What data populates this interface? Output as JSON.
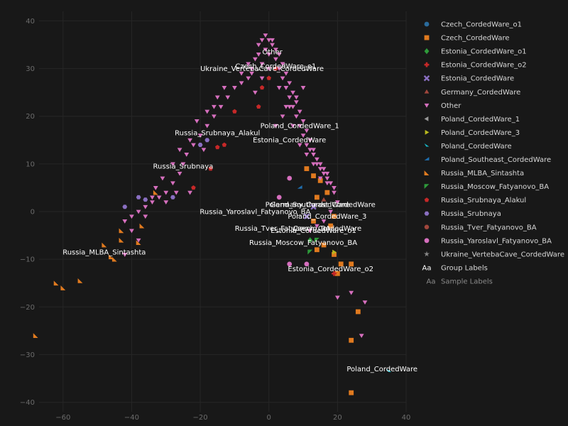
{
  "chart_data": {
    "type": "scatter",
    "xlim": [
      -67,
      40
    ],
    "ylim": [
      -42,
      42
    ],
    "x_ticks": [
      -60,
      -40,
      -20,
      0,
      20,
      40
    ],
    "y_ticks": [
      -40,
      -30,
      -20,
      -10,
      0,
      10,
      20,
      30,
      40
    ],
    "x_tick_labels": [
      "−60",
      "−40",
      "−20",
      "0",
      "20",
      "40"
    ],
    "y_tick_labels": [
      "−40",
      "−30",
      "−20",
      "−10",
      "0",
      "10",
      "20",
      "30",
      "40"
    ],
    "grid": true,
    "legend_position": "right",
    "series": [
      {
        "name": "Czech_CordedWare_o1",
        "marker": "circle",
        "color": "#2a6b9c",
        "points": []
      },
      {
        "name": "Czech_CordedWare",
        "marker": "square",
        "color": "#e07a1f",
        "points": [
          [
            11,
            9
          ],
          [
            13,
            7.5
          ],
          [
            15,
            6.5
          ],
          [
            17,
            4
          ],
          [
            14,
            3
          ],
          [
            13,
            -2
          ],
          [
            19,
            -1
          ],
          [
            18,
            -3
          ],
          [
            16,
            -7
          ],
          [
            14,
            -8
          ],
          [
            19,
            -9
          ],
          [
            21,
            -11
          ],
          [
            24,
            -11
          ],
          [
            20,
            -13
          ],
          [
            26,
            -21
          ],
          [
            24,
            -27
          ],
          [
            24,
            -38
          ]
        ]
      },
      {
        "name": "Estonia_CordedWare_o1",
        "marker": "diamond",
        "color": "#2e9b3a",
        "points": [
          [
            12,
            -6
          ]
        ]
      },
      {
        "name": "Estonia_CordedWare_o2",
        "marker": "plus",
        "color": "#c62828",
        "points": [
          [
            19,
            -13
          ]
        ]
      },
      {
        "name": "Estonia_CordedWare",
        "marker": "x",
        "color": "#8a6fc2",
        "points": [
          [
            11,
            -1
          ],
          [
            13,
            1
          ]
        ]
      },
      {
        "name": "Germany_CordedWare",
        "marker": "triangle-up",
        "color": "#a0463c",
        "points": [
          [
            16,
            2.5
          ]
        ]
      },
      {
        "name": "Other",
        "marker": "triangle-down",
        "color": "#d66fbe",
        "points": [
          [
            -3,
            35
          ],
          [
            -1,
            37
          ],
          [
            1,
            36
          ],
          [
            0,
            33
          ],
          [
            2,
            32
          ],
          [
            3,
            30
          ],
          [
            4,
            28
          ],
          [
            5,
            26
          ],
          [
            6,
            24
          ],
          [
            7,
            22
          ],
          [
            8,
            20
          ],
          [
            9,
            18
          ],
          [
            10,
            16
          ],
          [
            11,
            14
          ],
          [
            12,
            13
          ],
          [
            13,
            12
          ],
          [
            14,
            10
          ],
          [
            15,
            9
          ],
          [
            16,
            8
          ],
          [
            17,
            7
          ],
          [
            18,
            6
          ],
          [
            19,
            5
          ],
          [
            -4,
            32
          ],
          [
            -5,
            30
          ],
          [
            -6,
            28
          ],
          [
            -8,
            27
          ],
          [
            -10,
            26
          ],
          [
            -12,
            24
          ],
          [
            -14,
            22
          ],
          [
            -16,
            20
          ],
          [
            -18,
            18
          ],
          [
            -20,
            16
          ],
          [
            -22,
            14
          ],
          [
            -24,
            12
          ],
          [
            -25,
            10
          ],
          [
            -26,
            8
          ],
          [
            -28,
            6
          ],
          [
            -30,
            4
          ],
          [
            -32,
            3
          ],
          [
            -34,
            2
          ],
          [
            -36,
            1
          ],
          [
            -38,
            0
          ],
          [
            -40,
            -1
          ],
          [
            -42,
            -2
          ],
          [
            -40,
            -4
          ],
          [
            -38,
            -6
          ],
          [
            -42,
            -9
          ],
          [
            -34,
            3
          ],
          [
            -30,
            2
          ],
          [
            -36,
            -1
          ],
          [
            2,
            34
          ],
          [
            3,
            33
          ],
          [
            4,
            31
          ],
          [
            5,
            29
          ],
          [
            6,
            27
          ],
          [
            7,
            25
          ],
          [
            8,
            23
          ],
          [
            9,
            21
          ],
          [
            10,
            19
          ],
          [
            11,
            17
          ],
          [
            12,
            15
          ],
          [
            13,
            13
          ],
          [
            14,
            11
          ],
          [
            15,
            10
          ],
          [
            16,
            9
          ],
          [
            17,
            8
          ],
          [
            -2,
            36
          ],
          [
            -1,
            34
          ],
          [
            1,
            35
          ],
          [
            0,
            36
          ],
          [
            -3,
            33
          ],
          [
            -2,
            31
          ],
          [
            3,
            26
          ],
          [
            5,
            22
          ],
          [
            7,
            18
          ],
          [
            9,
            14
          ],
          [
            11,
            12
          ],
          [
            13,
            10
          ],
          [
            15,
            7
          ],
          [
            17,
            6
          ],
          [
            19,
            4
          ],
          [
            20,
            2
          ],
          [
            18,
            0
          ],
          [
            16,
            -2
          ],
          [
            14,
            -3
          ],
          [
            12,
            -4
          ],
          [
            -15,
            24
          ],
          [
            -18,
            21
          ],
          [
            -21,
            19
          ],
          [
            -23,
            15
          ],
          [
            -26,
            13
          ],
          [
            -28,
            10
          ],
          [
            -31,
            7
          ],
          [
            -33,
            5
          ],
          [
            -27,
            4
          ],
          [
            -23,
            4
          ],
          [
            -19,
            13
          ],
          [
            -16,
            22
          ],
          [
            -13,
            26
          ],
          [
            -8,
            29
          ],
          [
            -6,
            31
          ],
          [
            -5,
            29
          ],
          [
            20,
            -18
          ],
          [
            24,
            -17
          ],
          [
            28,
            -19
          ],
          [
            27,
            -26
          ],
          [
            10,
            26
          ],
          [
            8,
            24
          ],
          [
            6,
            22
          ],
          [
            4,
            20
          ],
          [
            2,
            18
          ],
          [
            0,
            30
          ],
          [
            -2,
            28
          ],
          [
            -4,
            25
          ]
        ]
      },
      {
        "name": "Poland_CordedWare_1",
        "marker": "triangle-left",
        "color": "#999999",
        "points": []
      },
      {
        "name": "Poland_CordedWare_3",
        "marker": "triangle-right",
        "color": "#b8b81e",
        "points": [
          [
            19,
            -8.5
          ]
        ]
      },
      {
        "name": "Poland_CordedWare",
        "marker": "wedge-right",
        "color": "#17becf",
        "points": [
          [
            35,
            -33.5
          ]
        ]
      },
      {
        "name": "Poland_Southeast_CordedWare",
        "marker": "wedge-left",
        "color": "#1f6faf",
        "points": [
          [
            9,
            5
          ]
        ]
      },
      {
        "name": "Russia_MLBA_Sintashta",
        "marker": "wedge-sw",
        "color": "#e07a1f",
        "points": [
          [
            -62,
            -15
          ],
          [
            -60,
            -16
          ],
          [
            -55,
            -14.5
          ],
          [
            -48,
            -7
          ],
          [
            -46,
            -9.5
          ],
          [
            -45,
            -10
          ],
          [
            -43,
            -4
          ],
          [
            -43,
            -6
          ],
          [
            -38,
            -6.5
          ],
          [
            -37,
            -3
          ],
          [
            -33,
            4
          ],
          [
            -68,
            -26
          ]
        ]
      },
      {
        "name": "Russia_Moscow_Fatyanovo_BA",
        "marker": "wedge-ne",
        "color": "#2e9b3a",
        "points": [
          [
            12,
            -8.5
          ],
          [
            14,
            -6
          ]
        ]
      },
      {
        "name": "Russia_Srubnaya_Alakul",
        "marker": "pentagon",
        "color": "#c62828",
        "points": [
          [
            -13,
            14
          ],
          [
            -15,
            13.5
          ],
          [
            -22,
            5
          ],
          [
            -17,
            9
          ],
          [
            -10,
            21
          ],
          [
            -2,
            26
          ],
          [
            0,
            28
          ],
          [
            2,
            30
          ],
          [
            -3,
            22
          ]
        ]
      },
      {
        "name": "Russia_Srubnaya",
        "marker": "hexagon",
        "color": "#8a6fc2",
        "points": [
          [
            -20,
            14
          ],
          [
            -18,
            15
          ],
          [
            -38,
            3
          ],
          [
            -36,
            2.5
          ],
          [
            -42,
            1
          ],
          [
            -28,
            3
          ]
        ]
      },
      {
        "name": "Russia_Tver_Fatyanovo_BA",
        "marker": "octagon",
        "color": "#a0463c",
        "points": []
      },
      {
        "name": "Russia_Yaroslavl_Fatyanovo_BA",
        "marker": "circle",
        "color": "#d66fbe",
        "points": [
          [
            6,
            7
          ],
          [
            3,
            3
          ],
          [
            6,
            -11
          ],
          [
            11,
            -11
          ]
        ]
      },
      {
        "name": "Ukraine_VertebaCave_CordedWare",
        "marker": "star",
        "color": "#888888",
        "points": []
      }
    ],
    "group_labels": [
      {
        "text": "Other",
        "x": 1,
        "y": 33
      },
      {
        "text": "Czech_CordedWare_o1",
        "x": 2,
        "y": 30
      },
      {
        "text": "Ukraine_VertebaCave_CordedWare",
        "x": -2,
        "y": 29.5
      },
      {
        "text": "Poland_CordedWare_1",
        "x": 9,
        "y": 17.5
      },
      {
        "text": "Russia_Srubnaya_Alakul",
        "x": -15,
        "y": 16
      },
      {
        "text": "Estonia_CordedWare",
        "x": 6,
        "y": 14.5
      },
      {
        "text": "Russia_Srubnaya",
        "x": -25,
        "y": 9
      },
      {
        "text": "Poland_Southeast_CordedWare",
        "x": 15,
        "y": 1
      },
      {
        "text": "Germany_CordedWare",
        "x": 12,
        "y": 1
      },
      {
        "text": "Russia_Yaroslavl_Fatyanovo_BA",
        "x": -4,
        "y": -0.5
      },
      {
        "text": "Poland_CordedWare_3",
        "x": 17,
        "y": -1.5
      },
      {
        "text": "Russia_Tver_Fatyanovo_BA",
        "x": 4,
        "y": -4
      },
      {
        "text": "Czech_CordedWare",
        "x": 17,
        "y": -4
      },
      {
        "text": "Estonia_CordedWare_o1",
        "x": 13,
        "y": -4.5
      },
      {
        "text": "Russia_Moscow_Fatyanovo_BA",
        "x": 10,
        "y": -7
      },
      {
        "text": "Russia_MLBA_Sintashta",
        "x": -48,
        "y": -9
      },
      {
        "text": "Estonia_CordedWare_o2",
        "x": 18,
        "y": -12.5
      },
      {
        "text": "Poland_CordedWare",
        "x": 33,
        "y": -33.5
      }
    ],
    "legend_extras": [
      {
        "glyph": "Aa",
        "label": "Group Labels"
      },
      {
        "glyph": "Aa",
        "label": "Sample Labels"
      }
    ]
  }
}
